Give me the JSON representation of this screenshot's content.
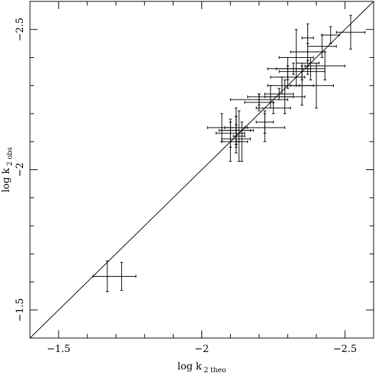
{
  "chart_data": {
    "type": "scatter",
    "title": "",
    "xlabel": "log k",
    "xlabel_sub": "2 theo",
    "ylabel": "log k",
    "ylabel_sub": "2 obs",
    "xlim": [
      -1.4,
      -2.6
    ],
    "ylim": [
      -1.4,
      -2.6
    ],
    "x_reversed": true,
    "y_reversed": true,
    "x_ticks": [
      -1.5,
      -2,
      -2.5
    ],
    "x_tick_labels": [
      "−1.5",
      "−2",
      "−2.5"
    ],
    "y_ticks": [
      -1.5,
      -2,
      -2.5
    ],
    "y_tick_labels": [
      "−1.5",
      "−2",
      "−2.5"
    ],
    "grid": false,
    "reference_line": {
      "x": [
        -1.4,
        -2.6
      ],
      "y": [
        -1.4,
        -2.6
      ]
    },
    "points": [
      {
        "x": -1.67,
        "y": -1.62,
        "xerr": 0.05,
        "yerr": 0.055
      },
      {
        "x": -1.72,
        "y": -1.62,
        "xerr": 0.05,
        "yerr": 0.05
      },
      {
        "x": -2.07,
        "y": -2.15,
        "xerr": 0.05,
        "yerr": 0.05
      },
      {
        "x": -2.12,
        "y": -2.14,
        "xerr": 0.06,
        "yerr": 0.05
      },
      {
        "x": -2.12,
        "y": -2.11,
        "xerr": 0.05,
        "yerr": 0.05
      },
      {
        "x": -2.1,
        "y": -2.13,
        "xerr": 0.05,
        "yerr": 0.05
      },
      {
        "x": -2.12,
        "y": -2.14,
        "xerr": 0.05,
        "yerr": 0.05
      },
      {
        "x": -2.1,
        "y": -2.1,
        "xerr": 0.03,
        "yerr": 0.07
      },
      {
        "x": -2.12,
        "y": -2.15,
        "xerr": 0.04,
        "yerr": 0.07
      },
      {
        "x": -2.13,
        "y": -2.12,
        "xerr": 0.02,
        "yerr": 0.09
      },
      {
        "x": -2.14,
        "y": -2.1,
        "xerr": 0.02,
        "yerr": 0.07
      },
      {
        "x": -2.22,
        "y": -2.15,
        "xerr": 0.07,
        "yerr": 0.05
      },
      {
        "x": -2.22,
        "y": -2.17,
        "xerr": 0.03,
        "yerr": 0.04
      },
      {
        "x": -2.2,
        "y": -2.24,
        "xerr": 0.05,
        "yerr": 0.03
      },
      {
        "x": -2.2,
        "y": -2.25,
        "xerr": 0.1,
        "yerr": 0.02
      },
      {
        "x": -2.25,
        "y": -2.22,
        "xerr": 0.06,
        "yerr": 0.02
      },
      {
        "x": -2.24,
        "y": -2.26,
        "xerr": 0.08,
        "yerr": 0.04
      },
      {
        "x": -2.27,
        "y": -2.27,
        "xerr": 0.05,
        "yerr": 0.02
      },
      {
        "x": -2.29,
        "y": -2.26,
        "xerr": 0.07,
        "yerr": 0.06
      },
      {
        "x": -2.28,
        "y": -2.3,
        "xerr": 0.05,
        "yerr": 0.03
      },
      {
        "x": -2.3,
        "y": -2.33,
        "xerr": 0.06,
        "yerr": 0.04
      },
      {
        "x": -2.3,
        "y": -2.36,
        "xerr": 0.07,
        "yerr": 0.04
      },
      {
        "x": -2.32,
        "y": -2.36,
        "xerr": 0.06,
        "yerr": 0.02
      },
      {
        "x": -2.33,
        "y": -2.4,
        "xerr": 0.06,
        "yerr": 0.1
      },
      {
        "x": -2.35,
        "y": -2.35,
        "xerr": 0.08,
        "yerr": 0.03
      },
      {
        "x": -2.35,
        "y": -2.3,
        "xerr": 0.04,
        "yerr": 0.07
      },
      {
        "x": -2.37,
        "y": -2.38,
        "xerr": 0.04,
        "yerr": 0.04
      },
      {
        "x": -2.37,
        "y": -2.42,
        "xerr": 0.06,
        "yerr": 0.03
      },
      {
        "x": -2.37,
        "y": -2.47,
        "xerr": 0.02,
        "yerr": 0.05
      },
      {
        "x": -2.38,
        "y": -2.36,
        "xerr": 0.05,
        "yerr": 0.04
      },
      {
        "x": -2.4,
        "y": -2.3,
        "xerr": 0.06,
        "yerr": 0.08
      },
      {
        "x": -2.43,
        "y": -2.37,
        "xerr": 0.07,
        "yerr": 0.05
      },
      {
        "x": -2.42,
        "y": -2.44,
        "xerr": 0.05,
        "yerr": 0.04
      },
      {
        "x": -2.45,
        "y": -2.48,
        "xerr": 0.03,
        "yerr": 0.03
      },
      {
        "x": -2.52,
        "y": -2.49,
        "xerr": 0.05,
        "yerr": 0.06
      }
    ]
  }
}
